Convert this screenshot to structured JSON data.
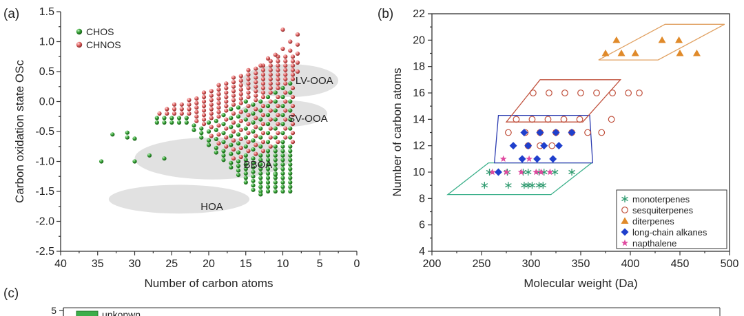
{
  "chart_data": [
    {
      "panel_label": "(a)",
      "type": "scatter",
      "xlabel": "Number of carbon atoms",
      "ylabel": "Carbon oxidation state OSc",
      "xlim": [
        40,
        0
      ],
      "ylim": [
        -2.5,
        1.5
      ],
      "xticks": [
        "40",
        "35",
        "30",
        "25",
        "20",
        "15",
        "10",
        "5",
        "0"
      ],
      "yticks": [
        "1.5",
        "1.0",
        "0.5",
        "0.0",
        "-0.5",
        "-1.0",
        "-1.5",
        "-2.0",
        "-2.5"
      ],
      "legend": [
        "CHOS",
        "CHNOS"
      ],
      "series_colors": {
        "CHOS": "#2e9e2e",
        "CHNOS": "#e06a6a"
      },
      "regions": [
        {
          "label": "LV-OOA",
          "cx": 9,
          "cy": 0.35,
          "wx": 13,
          "wy": 0.55
        },
        {
          "label": "SV-OOA",
          "cx": 10,
          "cy": -0.2,
          "wx": 12,
          "wy": 0.45
        },
        {
          "label": "BBOA",
          "cx": 19.5,
          "cy": -0.95,
          "wx": 21,
          "wy": 0.7
        },
        {
          "label": "HOA",
          "cx": 24,
          "cy": -1.63,
          "wx": 19,
          "wy": 0.48
        }
      ],
      "chos_extra": [
        [
          34.5,
          -1.0
        ],
        [
          33,
          -0.55
        ],
        [
          31,
          -0.52
        ],
        [
          31,
          -0.6
        ],
        [
          30,
          -0.62
        ],
        [
          30,
          -1.0
        ],
        [
          28,
          -0.9
        ],
        [
          26,
          -0.95
        ],
        [
          13,
          -1.55
        ],
        [
          11,
          -1.22
        ]
      ],
      "chnos_extra": [
        [
          10,
          1.2
        ],
        [
          8,
          1.12
        ],
        [
          8,
          0.95
        ],
        [
          8,
          0.8
        ],
        [
          8,
          0.65
        ],
        [
          8,
          0.5
        ],
        [
          10,
          0.88
        ],
        [
          11,
          0.78
        ],
        [
          9,
          1.0
        ],
        [
          9,
          0.85
        ],
        [
          12,
          0.72
        ],
        [
          13,
          0.6
        ]
      ]
    },
    {
      "panel_label": "(b)",
      "type": "scatter",
      "xlabel": "Molecular weight (Da)",
      "ylabel": "Number of carbon atoms",
      "xlim": [
        200,
        500
      ],
      "ylim": [
        4,
        22
      ],
      "xticks": [
        "200",
        "250",
        "300",
        "350",
        "400",
        "450",
        "500"
      ],
      "yticks": [
        "4",
        "6",
        "8",
        "10",
        "12",
        "14",
        "16",
        "18",
        "20",
        "22"
      ],
      "series": [
        {
          "name": "monoterpenes",
          "marker": "asterisk",
          "color": "#2d9a6e",
          "points": [
            [
              253,
              9
            ],
            [
              277,
              9
            ],
            [
              293,
              9
            ],
            [
              297,
              9
            ],
            [
              301,
              9
            ],
            [
              308,
              9
            ],
            [
              312,
              9
            ],
            [
              258,
              10
            ],
            [
              276,
              10
            ],
            [
              292,
              10
            ],
            [
              297,
              10
            ],
            [
              308,
              10
            ],
            [
              313,
              10
            ],
            [
              324,
              10
            ],
            [
              341,
              10
            ]
          ]
        },
        {
          "name": "sesquiterpenes",
          "marker": "circle",
          "color": "#c0503c",
          "points": [
            [
              297,
              12
            ],
            [
              309,
              12
            ],
            [
              321,
              12
            ],
            [
              277,
              13
            ],
            [
              294,
              13
            ],
            [
              309,
              13
            ],
            [
              325,
              13
            ],
            [
              341,
              13
            ],
            [
              357,
              13
            ],
            [
              371,
              13
            ],
            [
              285,
              14
            ],
            [
              301,
              14
            ],
            [
              317,
              14
            ],
            [
              333,
              14
            ],
            [
              349,
              14
            ],
            [
              381,
              14
            ],
            [
              302,
              16
            ],
            [
              318,
              16
            ],
            [
              334,
              16
            ],
            [
              350,
              16
            ],
            [
              366,
              16
            ],
            [
              382,
              16
            ],
            [
              398,
              16
            ],
            [
              409,
              16
            ]
          ]
        },
        {
          "name": "diterpenes",
          "marker": "triangle",
          "color": "#e08a2a",
          "points": [
            [
              386,
              20
            ],
            [
              432,
              20
            ],
            [
              449,
              20
            ],
            [
              375,
              19
            ],
            [
              391,
              19
            ],
            [
              405,
              19
            ],
            [
              450,
              19
            ],
            [
              467,
              19
            ]
          ]
        },
        {
          "name": "long-chain alkanes",
          "marker": "diamond",
          "color": "#1f3fcc",
          "points": [
            [
              293,
              13
            ],
            [
              309,
              13
            ],
            [
              325,
              13
            ],
            [
              341,
              13
            ],
            [
              282,
              12
            ],
            [
              297,
              12
            ],
            [
              313,
              12
            ],
            [
              328,
              12
            ],
            [
              291,
              11
            ],
            [
              306,
              11
            ],
            [
              322,
              11
            ],
            [
              267,
              10
            ]
          ]
        },
        {
          "name": "napthalene",
          "marker": "star",
          "color": "#e04aa0",
          "points": [
            [
              261,
              10
            ],
            [
              275,
              10
            ],
            [
              290,
              10
            ],
            [
              305,
              10
            ],
            [
              310,
              10
            ],
            [
              319,
              10
            ],
            [
              272,
              11
            ],
            [
              298,
              11
            ]
          ]
        }
      ],
      "groups": [
        {
          "color": "#3bb08a",
          "pts": [
            [
              216,
              8.3
            ],
            [
              320,
              8.3
            ],
            [
              361,
              10.7
            ],
            [
              257,
              10.7
            ]
          ]
        },
        {
          "color": "#2a3ab0",
          "pts": [
            [
              263,
              10.7
            ],
            [
              362,
              10.7
            ],
            [
              359,
              14.3
            ],
            [
              267,
              14.3
            ]
          ]
        },
        {
          "color": "#c0503c",
          "pts": [
            [
              275,
              13.8
            ],
            [
              352,
              13.8
            ],
            [
              390,
              17
            ],
            [
              309,
              17
            ]
          ]
        },
        {
          "color": "#e0a060",
          "pts": [
            [
              368,
              18.5
            ],
            [
              428,
              18.5
            ],
            [
              495,
              21.2
            ],
            [
              435,
              21.2
            ]
          ]
        }
      ]
    },
    {
      "panel_label": "(c)",
      "type": "bar",
      "ytick_top": "5",
      "legend": [
        "unkonwn"
      ],
      "legend_colors": [
        "#3cae4a"
      ]
    }
  ]
}
